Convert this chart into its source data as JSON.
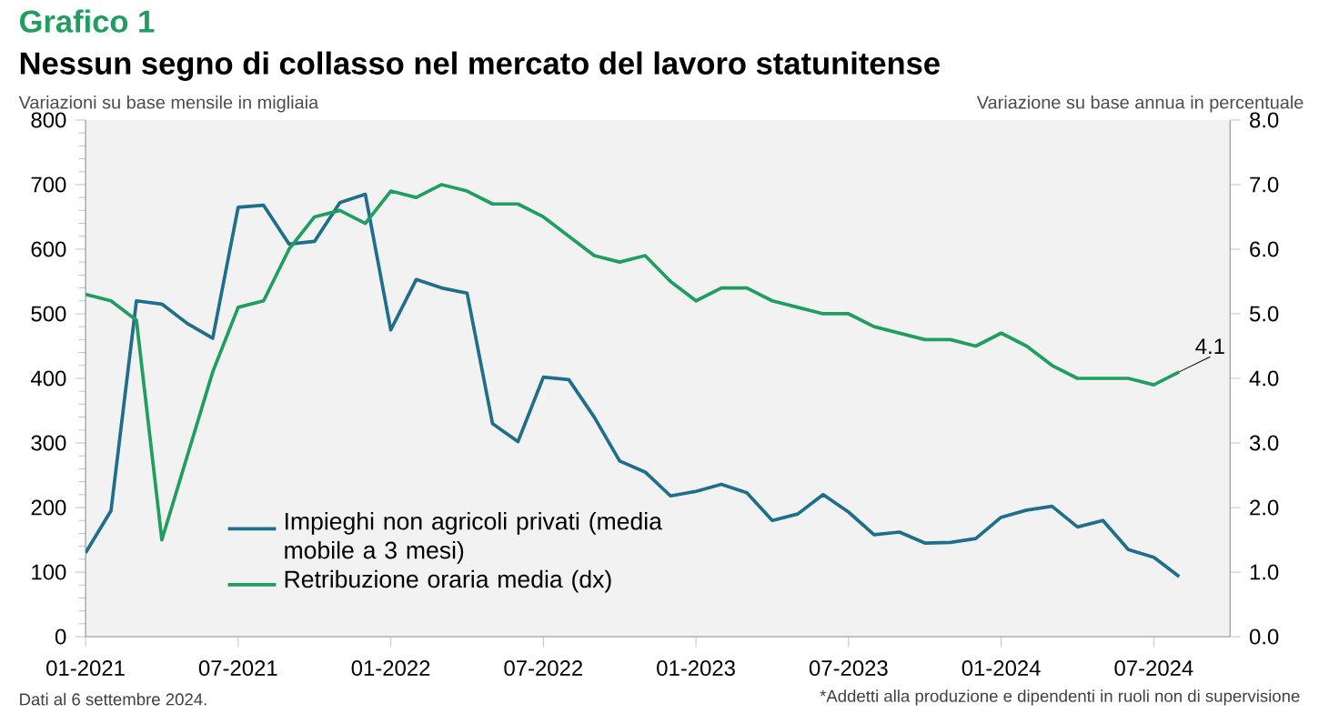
{
  "chart_data": {
    "type": "line",
    "title": "Grafico 1",
    "subtitle": "Nessun segno di collasso nel mercato del lavoro statunitense",
    "ylabel": "Variazioni su base mensile in migliaia",
    "y2label": "Variazione su base annua in percentuale",
    "x": [
      "2021-01",
      "2021-02",
      "2021-03",
      "2021-04",
      "2021-05",
      "2021-06",
      "2021-07",
      "2021-08",
      "2021-09",
      "2021-10",
      "2021-11",
      "2021-12",
      "2022-01",
      "2022-02",
      "2022-03",
      "2022-04",
      "2022-05",
      "2022-06",
      "2022-07",
      "2022-08",
      "2022-09",
      "2022-10",
      "2022-11",
      "2022-12",
      "2023-01",
      "2023-02",
      "2023-03",
      "2023-04",
      "2023-05",
      "2023-06",
      "2023-07",
      "2023-08",
      "2023-09",
      "2023-10",
      "2023-11",
      "2023-12",
      "2024-01",
      "2024-02",
      "2024-03",
      "2024-04",
      "2024-05",
      "2024-06",
      "2024-07",
      "2024-08"
    ],
    "series": [
      {
        "name": "Impieghi non agricoli privati (media mobile a 3 mesi)",
        "color": "#1f6e8c",
        "values": [
          130,
          195,
          520,
          515,
          485,
          462,
          665,
          668,
          608,
          612,
          672,
          685,
          475,
          553,
          540,
          532,
          330,
          302,
          402,
          398,
          340,
          272,
          255,
          218,
          225,
          236,
          223,
          180,
          190,
          220,
          193,
          158,
          162,
          145,
          146,
          152,
          185,
          196,
          202,
          170,
          180,
          135,
          123,
          93
        ]
      },
      {
        "name": "Retribuzione oraria media (dx)",
        "color": "#1f9e5f",
        "axis": "y2",
        "values": [
          5.3,
          5.2,
          4.9,
          1.5,
          2.8,
          4.1,
          5.1,
          5.2,
          6.0,
          6.5,
          6.6,
          6.4,
          6.9,
          6.8,
          7.0,
          6.9,
          6.7,
          6.7,
          6.5,
          6.2,
          5.9,
          5.8,
          5.9,
          5.5,
          5.2,
          5.4,
          5.4,
          5.2,
          5.1,
          5.0,
          5.0,
          4.8,
          4.7,
          4.6,
          4.6,
          4.5,
          4.7,
          4.5,
          4.2,
          4.0,
          4.0,
          4.0,
          3.9,
          4.1
        ]
      }
    ],
    "xlim": [
      "2021-01",
      "2024-10"
    ],
    "xticks": [
      {
        "value": "2021-01",
        "label": "01-2021"
      },
      {
        "value": "2021-07",
        "label": "07-2021"
      },
      {
        "value": "2022-01",
        "label": "01-2022"
      },
      {
        "value": "2022-07",
        "label": "07-2022"
      },
      {
        "value": "2023-01",
        "label": "01-2023"
      },
      {
        "value": "2023-07",
        "label": "07-2023"
      },
      {
        "value": "2024-01",
        "label": "01-2024"
      },
      {
        "value": "2024-07",
        "label": "07-2024"
      }
    ],
    "ylim": [
      0,
      800
    ],
    "yticks": [
      0,
      100,
      200,
      300,
      400,
      500,
      600,
      700,
      800
    ],
    "y2lim": [
      0,
      8
    ],
    "y2ticks": [
      {
        "value": 0,
        "label": "0.0"
      },
      {
        "value": 1,
        "label": "1.0"
      },
      {
        "value": 2,
        "label": "2.0"
      },
      {
        "value": 3,
        "label": "3.0"
      },
      {
        "value": 4,
        "label": "4.0"
      },
      {
        "value": 5,
        "label": "5.0"
      },
      {
        "value": 6,
        "label": "6.0"
      },
      {
        "value": 7,
        "label": "7.0"
      },
      {
        "value": 8,
        "label": "8.0"
      }
    ],
    "legend": "bottom left",
    "marker": "none",
    "line_style": "solid",
    "annotations": [
      "4.1",
      "Dati al 6 settembre 2024.",
      "*Addetti alla produzione e dipendenti in ruoli non di supervisione"
    ]
  }
}
